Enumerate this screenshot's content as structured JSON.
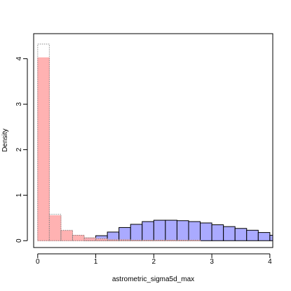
{
  "chart_data": {
    "type": "bar",
    "title": "",
    "xlabel": "astrometric_sigma5d_max",
    "ylabel": "Density",
    "xlim": [
      -0.07,
      4.05
    ],
    "ylim": [
      -0.15,
      4.55
    ],
    "x_ticks": [
      0,
      1,
      2,
      3,
      4
    ],
    "y_ticks": [
      0,
      1,
      2,
      3,
      4
    ],
    "grid": false,
    "bin_width": 0.2,
    "bin_starts": [
      0.0,
      0.2,
      0.4,
      0.6,
      0.8,
      1.0,
      1.2,
      1.4,
      1.6,
      1.8,
      2.0,
      2.2,
      2.4,
      2.6,
      2.8,
      3.0,
      3.2,
      3.4,
      3.6,
      3.8,
      4.0
    ],
    "series": [
      {
        "style": "filled",
        "fill": "#aaaaff",
        "stroke": "#000000",
        "values": [
          0.0,
          0.0,
          0.0,
          0.0,
          0.06,
          0.11,
          0.19,
          0.29,
          0.36,
          0.42,
          0.45,
          0.45,
          0.44,
          0.42,
          0.39,
          0.35,
          0.31,
          0.27,
          0.23,
          0.18,
          0.12
        ]
      },
      {
        "style": "filled",
        "fill": "#ffaaaa",
        "stroke": "#ffaaaa",
        "values": [
          4.02,
          0.55,
          0.22,
          0.12,
          0.06,
          0.04,
          0.02,
          0.02,
          0.01,
          0.01,
          0.01,
          0.01,
          0.01,
          0.01,
          0.0,
          0.0,
          0.0,
          0.0,
          0.0,
          0.0,
          0.0
        ]
      },
      {
        "style": "dotted-outline",
        "fill": "none",
        "stroke": "#888888",
        "values": [
          4.32,
          0.58,
          0.23,
          0.12,
          0.06,
          0.04,
          0.02,
          0.02,
          0.01,
          0.01,
          0.01,
          0.01,
          0.01,
          0.01,
          0.0,
          0.0,
          0.0,
          0.0,
          0.0,
          0.0,
          0.0
        ]
      }
    ]
  }
}
